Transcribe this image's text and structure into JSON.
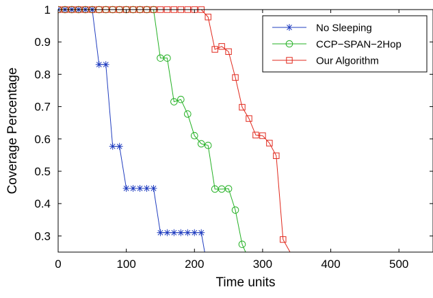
{
  "chart_data": {
    "type": "line",
    "title": "",
    "xlabel": "Time units",
    "ylabel": "Coverage Percentage",
    "xlim": [
      0,
      550
    ],
    "ylim": [
      0.25,
      1.0
    ],
    "xticks": [
      0,
      100,
      200,
      300,
      400,
      500
    ],
    "xtick_labels": [
      "0",
      "100",
      "200",
      "300",
      "400",
      "500"
    ],
    "yticks": [
      0.3,
      0.4,
      0.5,
      0.6,
      0.7,
      0.8,
      0.9,
      1.0
    ],
    "ytick_labels": [
      "0.3",
      "0.4",
      "0.5",
      "0.6",
      "0.7",
      "0.8",
      "0.9",
      "1"
    ],
    "grid": false,
    "legend_position": "top-right",
    "series": [
      {
        "name": "No Sleeping",
        "color": "#1f3cbf",
        "marker": "asterisk",
        "x": [
          0,
          10,
          20,
          30,
          40,
          50,
          60,
          70,
          80,
          90,
          100,
          110,
          120,
          130,
          140,
          150,
          160,
          170,
          180,
          190,
          200,
          210,
          215
        ],
        "y": [
          1,
          1,
          1,
          1,
          1,
          1,
          0.83,
          0.83,
          0.577,
          0.577,
          0.447,
          0.447,
          0.447,
          0.447,
          0.447,
          0.31,
          0.31,
          0.31,
          0.31,
          0.31,
          0.31,
          0.31,
          0.25
        ]
      },
      {
        "name": "CCP−SPAN−2Hop",
        "color": "#22b022",
        "marker": "circle",
        "x": [
          0,
          10,
          20,
          30,
          40,
          50,
          60,
          70,
          80,
          90,
          100,
          110,
          120,
          130,
          140,
          150,
          160,
          170,
          180,
          190,
          200,
          210,
          220,
          230,
          240,
          250,
          260,
          270,
          275
        ],
        "y": [
          1,
          1,
          1,
          1,
          1,
          1,
          1,
          1,
          1,
          1,
          1,
          1,
          1,
          1,
          1,
          0.85,
          0.85,
          0.715,
          0.722,
          0.677,
          0.61,
          0.585,
          0.58,
          0.445,
          0.445,
          0.446,
          0.38,
          0.274,
          0.25
        ]
      },
      {
        "name": "Our Algorithm",
        "color": "#e0261a",
        "marker": "square",
        "x": [
          0,
          10,
          20,
          30,
          40,
          50,
          60,
          70,
          80,
          90,
          100,
          110,
          120,
          130,
          140,
          150,
          160,
          170,
          180,
          190,
          200,
          210,
          220,
          230,
          240,
          250,
          260,
          270,
          280,
          290,
          300,
          310,
          320,
          330,
          340
        ],
        "y": [
          1,
          1,
          1,
          1,
          1,
          1,
          1,
          1,
          1,
          1,
          1,
          1,
          1,
          1,
          1,
          1,
          1,
          1,
          1,
          1,
          1,
          1,
          0.977,
          0.877,
          0.886,
          0.87,
          0.79,
          0.698,
          0.663,
          0.612,
          0.61,
          0.587,
          0.548,
          0.289,
          0.251
        ]
      }
    ]
  }
}
